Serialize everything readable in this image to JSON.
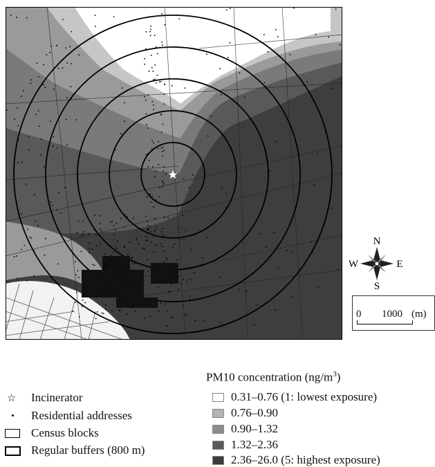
{
  "map": {
    "compass": {
      "north": "N",
      "south": "S",
      "east": "E",
      "west": "W"
    },
    "scale_bar": {
      "start": "0",
      "distance": "1000",
      "unit": "(m)"
    },
    "zone_colors": [
      "#d9d9d9",
      "#b8b8b8",
      "#8e8e8e",
      "#6b6b6b",
      "#4a4a4a"
    ]
  },
  "legend_left": {
    "items": [
      {
        "symbol": "star-icon",
        "label": "Incinerator"
      },
      {
        "symbol": "dot-icon",
        "label": "Residential addresses"
      },
      {
        "symbol": "rectangle-icon",
        "label": "Census blocks"
      },
      {
        "symbol": "bold-rectangle-icon",
        "label": "Regular buffers (800 m)"
      }
    ]
  },
  "legend_right": {
    "title": "PM10 concentration (ng/m",
    "title_sup": "3",
    "title_end": ")",
    "classes": [
      {
        "label": "0.31–0.76 (1: lowest exposure)",
        "color": "#ffffff"
      },
      {
        "label": "0.76–0.90",
        "color": "#b4b4b4"
      },
      {
        "label": "0.90–1.32",
        "color": "#8c8c8c"
      },
      {
        "label": "1.32–2.36",
        "color": "#5a5a5a"
      },
      {
        "label": "2.36–26.0 (5: highest exposure)",
        "color": "#3c3c3c"
      }
    ]
  }
}
